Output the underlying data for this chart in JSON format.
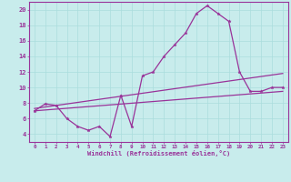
{
  "background_color": "#c8ecec",
  "line_color": "#993399",
  "grid_color": "#aadddd",
  "xlabel": "Windchill (Refroidissement éolien,°C)",
  "xlim": [
    -0.5,
    23.5
  ],
  "ylim": [
    3,
    21
  ],
  "yticks": [
    4,
    6,
    8,
    10,
    12,
    14,
    16,
    18,
    20
  ],
  "xticks": [
    0,
    1,
    2,
    3,
    4,
    5,
    6,
    7,
    8,
    9,
    10,
    11,
    12,
    13,
    14,
    15,
    16,
    17,
    18,
    19,
    20,
    21,
    22,
    23
  ],
  "curve1_x": [
    0,
    1,
    2,
    3,
    4,
    5,
    6,
    7,
    8,
    9,
    10,
    11,
    12,
    13,
    14,
    15,
    16,
    17,
    18,
    19,
    20,
    21,
    22,
    23
  ],
  "curve1_y": [
    7.0,
    7.9,
    7.7,
    6.0,
    5.0,
    4.5,
    5.0,
    3.7,
    9.0,
    5.0,
    11.5,
    12.0,
    14.0,
    15.5,
    17.0,
    19.5,
    20.5,
    19.5,
    18.5,
    12.0,
    9.5,
    9.5,
    10.0,
    10.0
  ],
  "curve2_x": [
    0,
    23
  ],
  "curve2_y": [
    7.3,
    11.8
  ],
  "curve3_x": [
    0,
    23
  ],
  "curve3_y": [
    7.0,
    9.5
  ]
}
